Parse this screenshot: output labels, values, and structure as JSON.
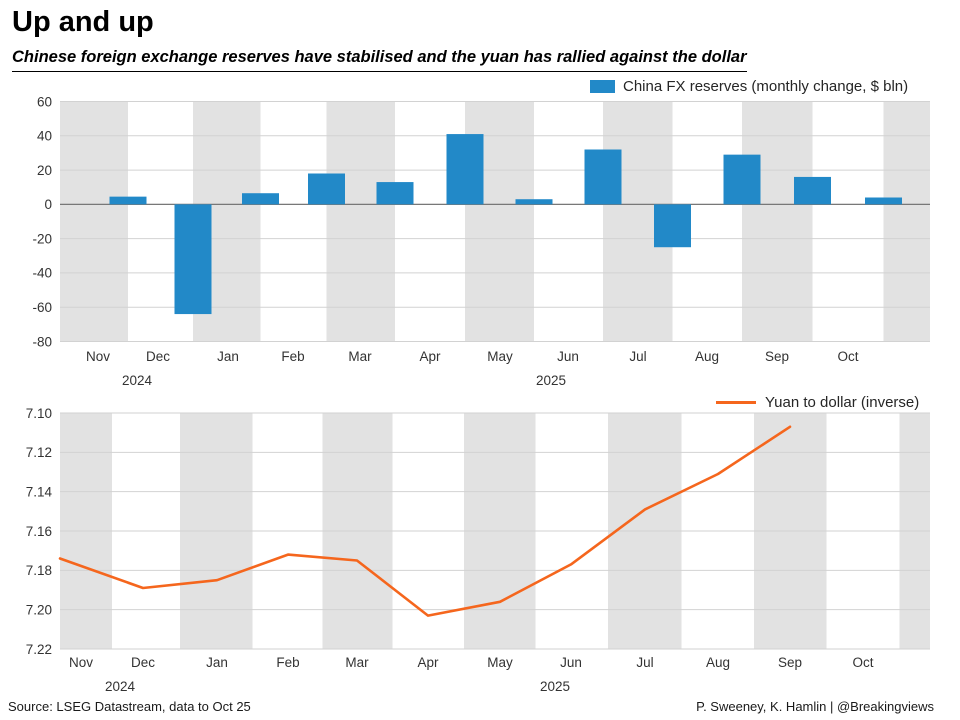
{
  "header": {
    "title": "Up and up",
    "subtitle": "Chinese foreign exchange reserves have stabilised and the yuan has rallied against the dollar"
  },
  "footer": {
    "source": "Source: LSEG Datastream, data to Oct 25",
    "credit": "P. Sweeney, K. Hamlin | @Breakingviews"
  },
  "colors": {
    "bar": "#2289c8",
    "line": "#f5661d",
    "band": "#e2e2e2",
    "grid": "#d2d2d2",
    "zero": "#787878",
    "axis_text": "#333333"
  },
  "chart_data": [
    {
      "type": "bar",
      "legend": "China FX reserves (monthly change, $ bln)",
      "categories": [
        "Nov",
        "Dec",
        "Jan",
        "Feb",
        "Mar",
        "Apr",
        "May",
        "Jun",
        "Jul",
        "Aug",
        "Sep",
        "Oct"
      ],
      "year_labels": [
        "2024",
        "2025"
      ],
      "values": [
        4.5,
        -64,
        6.5,
        18,
        13,
        41,
        3,
        32,
        -25,
        29,
        16,
        4
      ],
      "ylim": [
        -80,
        60
      ],
      "yticks": [
        "60",
        "40",
        "20",
        "0",
        "-20",
        "-40",
        "-60",
        "-80"
      ],
      "grid": true,
      "legend_position": "top-right",
      "xlabel": "",
      "ylabel": ""
    },
    {
      "type": "line",
      "legend": "Yuan to dollar (inverse)",
      "categories": [
        "Nov",
        "Dec",
        "Jan",
        "Feb",
        "Mar",
        "Apr",
        "May",
        "Jun",
        "Jul",
        "Aug",
        "Sep",
        "Oct"
      ],
      "year_labels": [
        "2024",
        "2025"
      ],
      "x": [
        "Nov",
        "Dec",
        "Jan",
        "Feb",
        "Mar",
        "Apr",
        "May",
        "Jun",
        "Jul",
        "Aug",
        "Sep"
      ],
      "values": [
        7.174,
        7.189,
        7.185,
        7.172,
        7.175,
        7.203,
        7.196,
        7.177,
        7.149,
        7.131,
        7.107
      ],
      "ylim": [
        7.22,
        7.1
      ],
      "axis_inverted": true,
      "yticks": [
        "7.10",
        "7.12",
        "7.14",
        "7.16",
        "7.18",
        "7.20",
        "7.22"
      ],
      "grid": true,
      "legend_position": "top-right",
      "xlabel": "",
      "ylabel": ""
    }
  ]
}
